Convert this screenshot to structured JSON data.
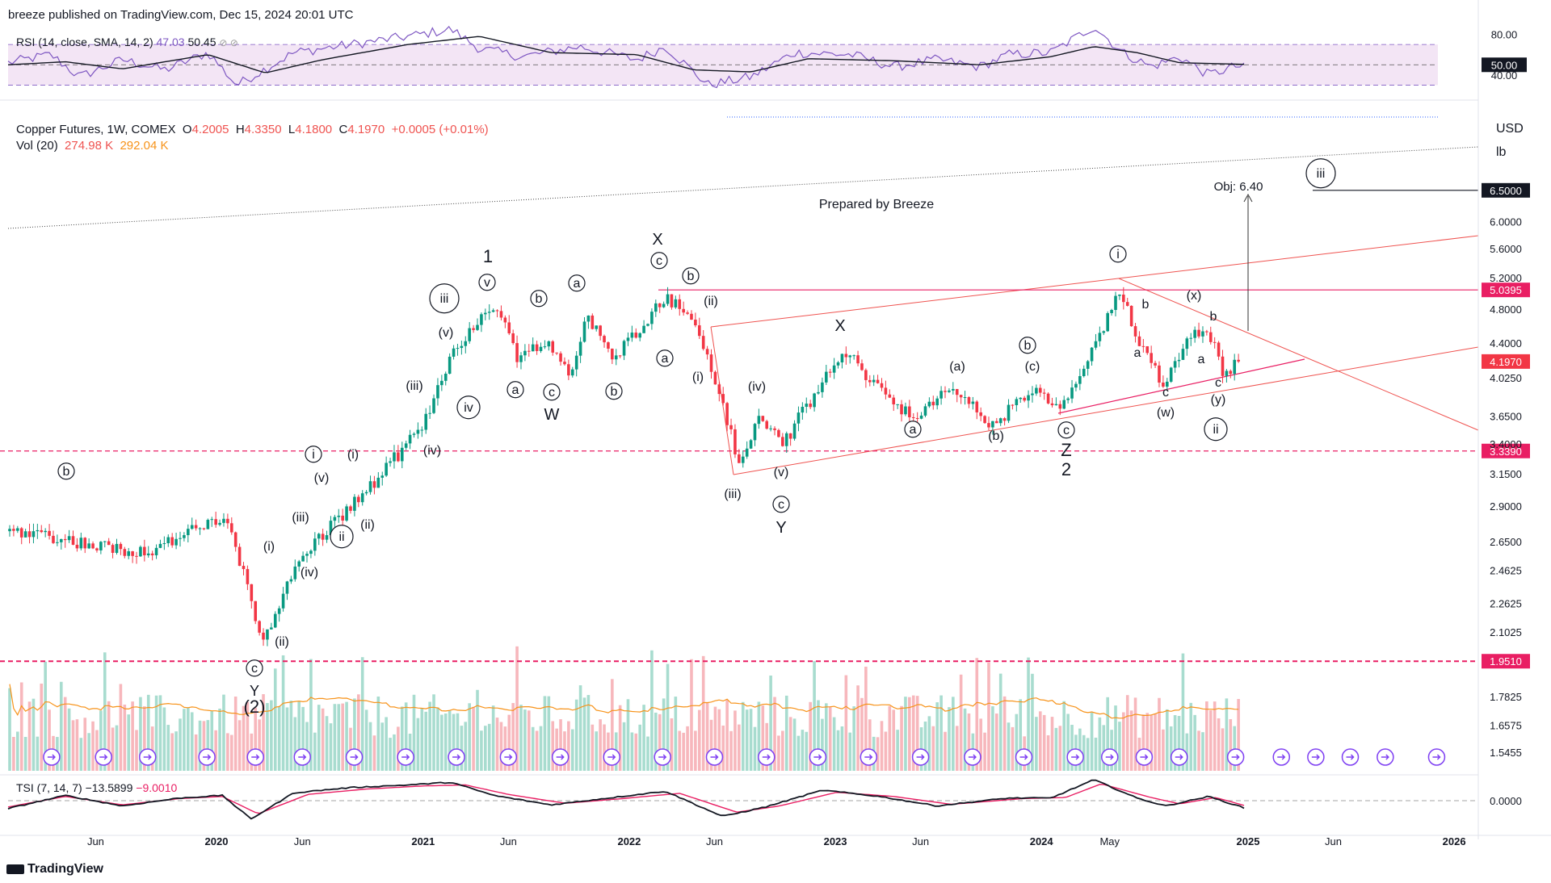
{
  "header": {
    "publisher": "breeze published on TradingView.com, Dec 15, 2024 20:01 UTC",
    "watermark_brand": "TradingView"
  },
  "rsi_legend": {
    "label": "RSI (14, close, SMA, 14, 2)",
    "rsi": "47.03",
    "sma": "50.45"
  },
  "main_legend": {
    "symbol": "Copper Futures, 1W, COMEX",
    "o_label": "O",
    "o": "4.2005",
    "h_label": "H",
    "h": "4.3350",
    "l_label": "L",
    "l": "4.1800",
    "c_label": "C",
    "c": "4.1970",
    "chg": "+0.0005 (+0.01%)"
  },
  "vol_legend": {
    "label": "Vol (20)",
    "vol": "274.98 K",
    "ma": "292.04 K"
  },
  "tsi_legend": {
    "label": "TSI (7, 14, 7)",
    "tsi": "−13.5899",
    "signal": "−9.0010"
  },
  "currency": {
    "unit": "USD",
    "sub": "lb"
  },
  "prepared_by": "Prepared by Breeze",
  "objective_label": "Obj: 6.40",
  "colors": {
    "up": "#089981",
    "down": "#f23645",
    "rsi": "#7e57c2",
    "tsi": "#131722",
    "tsi_signal": "#e91e63",
    "vol_ma": "#f7931a",
    "channel": "#ef5350",
    "hline": "#e91e63",
    "rsi_band": "#f3e5f5"
  },
  "chart_data": [
    {
      "type": "candlestick",
      "title": "Copper Futures, 1W, COMEX",
      "y_scale": "log",
      "x_ticks": [
        "Jun",
        "2020",
        "Jun",
        "2021",
        "Jun",
        "2022",
        "Jun",
        "2023",
        "Jun",
        "2024",
        "May",
        "2025",
        "Jun",
        "2026"
      ],
      "y_ticks": [
        "6.0000",
        "5.6000",
        "5.2000",
        "4.8000",
        "4.4000",
        "4.0250",
        "3.6500",
        "3.4000",
        "3.1500",
        "2.9000",
        "2.6500",
        "2.4625",
        "2.2625",
        "2.1025",
        "1.9510",
        "1.7825",
        "1.6575",
        "1.5455"
      ],
      "anchors": [
        {
          "date": "2019-02-01",
          "price": 2.72
        },
        {
          "date": "2019-06-01",
          "price": 2.62
        },
        {
          "date": "2019-09-01",
          "price": 2.58
        },
        {
          "date": "2020-01-15",
          "price": 2.82
        },
        {
          "date": "2020-03-22",
          "price": 2.05
        },
        {
          "date": "2020-06-01",
          "price": 2.55
        },
        {
          "date": "2020-10-01",
          "price": 3.05
        },
        {
          "date": "2021-01-01",
          "price": 3.55
        },
        {
          "date": "2021-02-25",
          "price": 4.35
        },
        {
          "date": "2021-05-12",
          "price": 4.85
        },
        {
          "date": "2021-06-20",
          "price": 4.2
        },
        {
          "date": "2021-08-01",
          "price": 4.45
        },
        {
          "date": "2021-09-20",
          "price": 4.05
        },
        {
          "date": "2021-10-18",
          "price": 4.75
        },
        {
          "date": "2021-12-01",
          "price": 4.2
        },
        {
          "date": "2022-03-07",
          "price": 4.95
        },
        {
          "date": "2022-04-20",
          "price": 4.7
        },
        {
          "date": "2022-05-20",
          "price": 4.25
        },
        {
          "date": "2022-07-15",
          "price": 3.2
        },
        {
          "date": "2022-08-20",
          "price": 3.65
        },
        {
          "date": "2022-10-01",
          "price": 3.4
        },
        {
          "date": "2023-01-18",
          "price": 4.3
        },
        {
          "date": "2023-03-15",
          "price": 3.95
        },
        {
          "date": "2023-05-25",
          "price": 3.6
        },
        {
          "date": "2023-07-25",
          "price": 3.95
        },
        {
          "date": "2023-10-05",
          "price": 3.55
        },
        {
          "date": "2023-12-15",
          "price": 3.9
        },
        {
          "date": "2024-02-05",
          "price": 3.7
        },
        {
          "date": "2024-04-10",
          "price": 4.4
        },
        {
          "date": "2024-05-20",
          "price": 5.03
        },
        {
          "date": "2024-06-20",
          "price": 4.45
        },
        {
          "date": "2024-08-05",
          "price": 3.95
        },
        {
          "date": "2024-09-27",
          "price": 4.6
        },
        {
          "date": "2024-11-05",
          "price": 4.35
        },
        {
          "date": "2024-11-20",
          "price": 4.05
        },
        {
          "date": "2024-12-15",
          "price": 4.197
        }
      ],
      "horizontal_levels": [
        {
          "price": 6.5,
          "label": "6.5000"
        },
        {
          "price": 5.0395,
          "label": "5.0395"
        },
        {
          "price": 3.339,
          "label": "3.3390"
        },
        {
          "price": 1.951,
          "label": "1.9510"
        }
      ],
      "last_price": {
        "price": 4.197,
        "label": "4.1970"
      },
      "wave_labels": [
        "b",
        "(2)",
        "Y",
        "c",
        "(i)",
        "(ii)",
        "(iii)",
        "(iv)",
        "(v)",
        "i",
        "ii",
        "(i)",
        "(ii)",
        "(iii)",
        "(iv)",
        "(v)",
        "iii",
        "iv",
        "v",
        "1",
        "a",
        "b",
        "c",
        "W",
        "a",
        "b",
        "c",
        "X",
        "a",
        "b",
        "(i)",
        "(ii)",
        "(iii)",
        "(iv)",
        "(v)",
        "c",
        "Y",
        "X",
        "a",
        "(a)",
        "(b)",
        "b",
        "(c)",
        "c",
        "Z",
        "2",
        "i",
        "b",
        "a",
        "c",
        "(w)",
        "(x)",
        "b",
        "a",
        "c",
        "(y)",
        "ii",
        "iii"
      ]
    },
    {
      "type": "line",
      "title": "RSI (14, close, SMA, 14, 2)",
      "ylim": [
        20,
        90
      ],
      "y_ticks": [
        "80.00",
        "50.00",
        "40.00"
      ],
      "band": [
        30,
        70
      ],
      "series": [
        {
          "name": "RSI",
          "anchors": [
            [
              0,
              52
            ],
            [
              0.03,
              60
            ],
            [
              0.05,
              38
            ],
            [
              0.08,
              55
            ],
            [
              0.11,
              45
            ],
            [
              0.14,
              62
            ],
            [
              0.16,
              30
            ],
            [
              0.2,
              62
            ],
            [
              0.24,
              70
            ],
            [
              0.28,
              78
            ],
            [
              0.31,
              85
            ],
            [
              0.33,
              66
            ],
            [
              0.36,
              58
            ],
            [
              0.4,
              68
            ],
            [
              0.44,
              55
            ],
            [
              0.46,
              68
            ],
            [
              0.49,
              30
            ],
            [
              0.52,
              38
            ],
            [
              0.55,
              62
            ],
            [
              0.59,
              60
            ],
            [
              0.62,
              48
            ],
            [
              0.65,
              55
            ],
            [
              0.68,
              48
            ],
            [
              0.7,
              60
            ],
            [
              0.73,
              62
            ],
            [
              0.76,
              88
            ],
            [
              0.78,
              62
            ],
            [
              0.8,
              48
            ],
            [
              0.82,
              58
            ],
            [
              0.84,
              40
            ],
            [
              0.86,
              49
            ],
            [
              0.865,
              47
            ]
          ]
        },
        {
          "name": "SMA",
          "anchors": [
            [
              0,
              50
            ],
            [
              0.04,
              53
            ],
            [
              0.08,
              46
            ],
            [
              0.14,
              60
            ],
            [
              0.18,
              42
            ],
            [
              0.22,
              55
            ],
            [
              0.28,
              70
            ],
            [
              0.33,
              78
            ],
            [
              0.38,
              62
            ],
            [
              0.44,
              60
            ],
            [
              0.48,
              45
            ],
            [
              0.52,
              43
            ],
            [
              0.56,
              56
            ],
            [
              0.62,
              54
            ],
            [
              0.68,
              50
            ],
            [
              0.73,
              58
            ],
            [
              0.76,
              68
            ],
            [
              0.79,
              62
            ],
            [
              0.82,
              52
            ],
            [
              0.865,
              50.45
            ]
          ]
        }
      ]
    },
    {
      "type": "line",
      "title": "TSI (7, 14, 7)",
      "y_ticks": [
        "0.0000"
      ],
      "series": [
        {
          "name": "TSI",
          "anchors": [
            [
              0,
              -15
            ],
            [
              0.04,
              10
            ],
            [
              0.08,
              -10
            ],
            [
              0.12,
              5
            ],
            [
              0.15,
              10
            ],
            [
              0.17,
              -35
            ],
            [
              0.2,
              15
            ],
            [
              0.24,
              25
            ],
            [
              0.28,
              30
            ],
            [
              0.31,
              35
            ],
            [
              0.34,
              10
            ],
            [
              0.38,
              -8
            ],
            [
              0.42,
              5
            ],
            [
              0.46,
              18
            ],
            [
              0.5,
              -30
            ],
            [
              0.53,
              -12
            ],
            [
              0.57,
              20
            ],
            [
              0.61,
              8
            ],
            [
              0.65,
              -10
            ],
            [
              0.7,
              5
            ],
            [
              0.73,
              5
            ],
            [
              0.76,
              40
            ],
            [
              0.79,
              5
            ],
            [
              0.81,
              -10
            ],
            [
              0.84,
              8
            ],
            [
              0.865,
              -13.59
            ]
          ]
        },
        {
          "name": "Signal",
          "anchors": [
            [
              0,
              -12
            ],
            [
              0.04,
              8
            ],
            [
              0.08,
              -8
            ],
            [
              0.12,
              4
            ],
            [
              0.15,
              8
            ],
            [
              0.175,
              -25
            ],
            [
              0.21,
              12
            ],
            [
              0.25,
              22
            ],
            [
              0.29,
              28
            ],
            [
              0.32,
              30
            ],
            [
              0.35,
              12
            ],
            [
              0.39,
              -5
            ],
            [
              0.43,
              4
            ],
            [
              0.47,
              14
            ],
            [
              0.51,
              -22
            ],
            [
              0.54,
              -10
            ],
            [
              0.58,
              16
            ],
            [
              0.62,
              8
            ],
            [
              0.66,
              -7
            ],
            [
              0.71,
              4
            ],
            [
              0.74,
              6
            ],
            [
              0.765,
              32
            ],
            [
              0.8,
              6
            ],
            [
              0.82,
              -6
            ],
            [
              0.845,
              6
            ],
            [
              0.865,
              -9.0
            ]
          ]
        }
      ]
    },
    {
      "type": "bar",
      "title": "Vol (20)",
      "description_values": {
        "last_volume": "274.98 K",
        "ma": "292.04 K"
      }
    }
  ]
}
